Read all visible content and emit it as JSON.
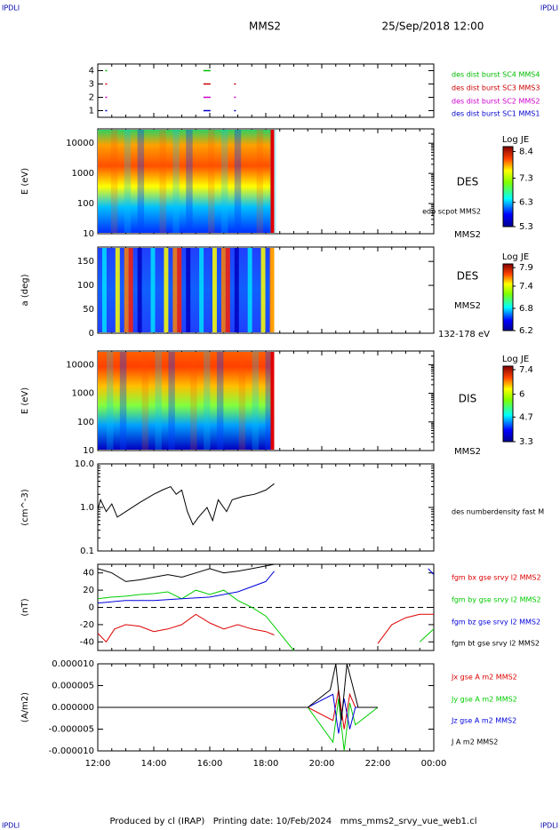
{
  "header": {
    "corner_labels": [
      "IPDLI",
      "IPDLI",
      "IPDLI",
      "IPDLI"
    ],
    "spacecraft": "MMS2",
    "date": "25/Sep/2018 12:00"
  },
  "footer": "Produced by cl (IRAP)   Printing date: 10/Feb/2024   mms_mms2_srvy_vue_web1.cl",
  "chart_data": [
    {
      "type": "scatter",
      "xlim": [
        12,
        24
      ],
      "ylim": [
        0.5,
        4.5
      ],
      "yticks": [
        1,
        2,
        3,
        4
      ],
      "series": [
        {
          "name": "des dist burst SC1 MMS1",
          "color": "#0000cc",
          "x": [
            12.3,
            15.9,
            16.9
          ],
          "values": [
            1,
            1,
            1
          ]
        },
        {
          "name": "des dist burst SC2 MMS2",
          "color": "#cc00cc",
          "x": [
            12.3,
            15.9,
            16.9
          ],
          "values": [
            2,
            2,
            2
          ]
        },
        {
          "name": "des dist burst SC3 MMS3",
          "color": "#cc0000",
          "x": [
            12.3,
            15.9,
            16.9
          ],
          "values": [
            3,
            3,
            3
          ]
        },
        {
          "name": "des dist burst SC4 MMS4",
          "color": "#00bb00",
          "x": [
            12.3,
            15.9
          ],
          "values": [
            4,
            4
          ]
        }
      ]
    },
    {
      "type": "spectrogram",
      "ylabel": "E (eV)",
      "log": true,
      "xlim": [
        12,
        24
      ],
      "ylim": [
        10,
        30000
      ],
      "yticks": [
        10,
        100,
        1000,
        10000
      ],
      "coverage": [
        12,
        18.3
      ],
      "labels": [
        "DES",
        "edp scpot MMS2",
        "MMS2"
      ],
      "colorbar": {
        "label": "Log JE",
        "clim": [
          5.3,
          8.6
        ],
        "ticks": [
          5.3,
          6.3,
          7.3,
          8.4
        ]
      }
    },
    {
      "type": "spectrogram",
      "ylabel": "a (deg)",
      "log": false,
      "xlim": [
        12,
        24
      ],
      "ylim": [
        0,
        180
      ],
      "yticks": [
        0,
        50,
        100,
        150
      ],
      "coverage": [
        12,
        18.3
      ],
      "labels": [
        "DES",
        "MMS2",
        "132-178 eV"
      ],
      "colorbar": {
        "label": "Log JE",
        "clim": [
          6.2,
          8.0
        ],
        "ticks": [
          6.2,
          6.8,
          7.4,
          7.9
        ]
      }
    },
    {
      "type": "spectrogram",
      "ylabel": "E (eV)",
      "log": true,
      "xlim": [
        12,
        24
      ],
      "ylim": [
        10,
        30000
      ],
      "yticks": [
        10,
        100,
        1000,
        10000
      ],
      "coverage": [
        12,
        18.3
      ],
      "labels": [
        "DIS",
        "MMS2"
      ],
      "colorbar": {
        "label": "Log JE",
        "clim": [
          3.3,
          7.6
        ],
        "ticks": [
          3.3,
          4.7,
          6.0,
          7.4
        ]
      }
    },
    {
      "type": "line",
      "ylabel": "(cm^-3)",
      "log": true,
      "xlim": [
        12,
        24
      ],
      "ylim": [
        0.1,
        10
      ],
      "yticks": [
        0.1,
        {
          "value": 1,
          "label": "1.0"
        },
        {
          "value": 10,
          "label": "10.0"
        }
      ],
      "series": [
        {
          "name": "des numberdensity fast M",
          "color": "#000000",
          "x": [
            12.0,
            12.1,
            12.3,
            12.5,
            12.7,
            13.0,
            13.5,
            14.0,
            14.3,
            14.6,
            14.8,
            15.0,
            15.2,
            15.4,
            15.6,
            15.9,
            16.1,
            16.3,
            16.6,
            16.8,
            17.2,
            17.6,
            18.0,
            18.3
          ],
          "values": [
            0.9,
            1.5,
            0.8,
            1.2,
            0.6,
            0.8,
            1.3,
            2.0,
            2.5,
            3.0,
            2.0,
            2.5,
            0.8,
            0.4,
            0.6,
            1.0,
            0.5,
            1.5,
            0.8,
            1.5,
            1.8,
            2.0,
            2.5,
            3.5
          ]
        }
      ]
    },
    {
      "type": "line",
      "ylabel": "(nT)",
      "log": false,
      "zero_line": true,
      "xlim": [
        12,
        24
      ],
      "ylim": [
        -50,
        50
      ],
      "yticks": [
        -40,
        -20,
        0,
        20,
        40
      ],
      "series": [
        {
          "name": "fgm bx gse srvy l2 MMS2",
          "color": "#dd0000",
          "x": [
            12,
            12.3,
            12.6,
            13,
            13.5,
            14,
            14.5,
            15,
            15.5,
            16,
            16.5,
            17,
            17.5,
            18,
            18.3,
            20,
            22,
            22.5,
            23,
            23.5,
            24
          ],
          "values": [
            -30,
            -40,
            -25,
            -20,
            -22,
            -28,
            -25,
            -20,
            -8,
            -18,
            -25,
            -20,
            -25,
            -28,
            -32,
            null,
            -42,
            -20,
            -12,
            -8,
            -8
          ]
        },
        {
          "name": "fgm by gse srvy l2 MMS2",
          "color": "#00cc00",
          "x": [
            12,
            12.5,
            13,
            13.5,
            14,
            14.5,
            15,
            15.5,
            16,
            16.5,
            17,
            17.5,
            18,
            18.5,
            19,
            21,
            23.5,
            24
          ],
          "values": [
            10,
            12,
            13,
            15,
            16,
            18,
            10,
            20,
            15,
            20,
            8,
            0,
            -10,
            -30,
            -50,
            null,
            -40,
            -25
          ]
        },
        {
          "name": "fgm bz gse srvy l2 MMS2",
          "color": "#0000dd",
          "x": [
            12,
            13,
            14,
            15,
            16,
            17,
            18,
            18.3,
            21,
            23.8,
            24
          ],
          "values": [
            5,
            8,
            8,
            10,
            12,
            18,
            30,
            42,
            null,
            45,
            38
          ]
        },
        {
          "name": "fgm bt gse srvy l2 MMS2",
          "color": "#000000",
          "x": [
            12,
            12.5,
            13,
            13.5,
            14,
            14.5,
            15,
            15.5,
            16,
            16.5,
            17,
            17.5,
            18,
            18.3
          ],
          "values": [
            45,
            40,
            30,
            32,
            35,
            38,
            35,
            40,
            45,
            40,
            42,
            45,
            48,
            50
          ]
        }
      ]
    },
    {
      "type": "line",
      "ylabel": "(A/m2)",
      "log": false,
      "xlim": [
        12,
        24
      ],
      "ylim": [
        -1e-05,
        1e-05
      ],
      "yticks": [
        {
          "value": -1e-05,
          "label": "-0.000010"
        },
        {
          "value": -5e-06,
          "label": "-0.000005"
        },
        {
          "value": 0,
          "label": "0.000000"
        },
        {
          "value": 5e-06,
          "label": "0.000005"
        },
        {
          "value": 1e-05,
          "label": "0.000010"
        }
      ],
      "xticks": [
        {
          "value": 12,
          "label": "12:00"
        },
        {
          "value": 14,
          "label": "14:00"
        },
        {
          "value": 16,
          "label": "16:00"
        },
        {
          "value": 18,
          "label": "18:00"
        },
        {
          "value": 20,
          "label": "20:00"
        },
        {
          "value": 22,
          "label": "22:00"
        },
        {
          "value": 24,
          "label": "00:00"
        }
      ],
      "series": [
        {
          "name": "Jx gse A m2 MMS2",
          "color": "#dd0000",
          "x": [
            12,
            19.5,
            20.4,
            20.6,
            20.8,
            21.0,
            21.2,
            22
          ],
          "values": [
            0,
            0,
            -3e-06,
            4e-06,
            -5e-06,
            3e-06,
            0,
            0
          ]
        },
        {
          "name": "Jy gse A m2 MMS2",
          "color": "#00cc00",
          "x": [
            12,
            19.5,
            20.4,
            20.6,
            20.8,
            21.0,
            21.2,
            22
          ],
          "values": [
            0,
            0,
            -8e-06,
            2e-06,
            -1e-05,
            1e-06,
            -4e-06,
            0
          ]
        },
        {
          "name": "Jz gse A m2 MMS2",
          "color": "#0000dd",
          "x": [
            12,
            19.5,
            20.4,
            20.6,
            20.8,
            21.0,
            21.2,
            22
          ],
          "values": [
            0,
            0,
            3e-06,
            -6e-06,
            2e-06,
            -5e-06,
            0,
            0
          ]
        },
        {
          "name": "J A m2 MMS2",
          "color": "#000000",
          "x": [
            12,
            19.5,
            20.3,
            20.5,
            20.7,
            20.9,
            21.1,
            21.3,
            22
          ],
          "values": [
            0,
            0,
            4e-06,
            1e-05,
            -3e-06,
            1e-05,
            5e-06,
            0,
            0
          ]
        }
      ]
    }
  ]
}
